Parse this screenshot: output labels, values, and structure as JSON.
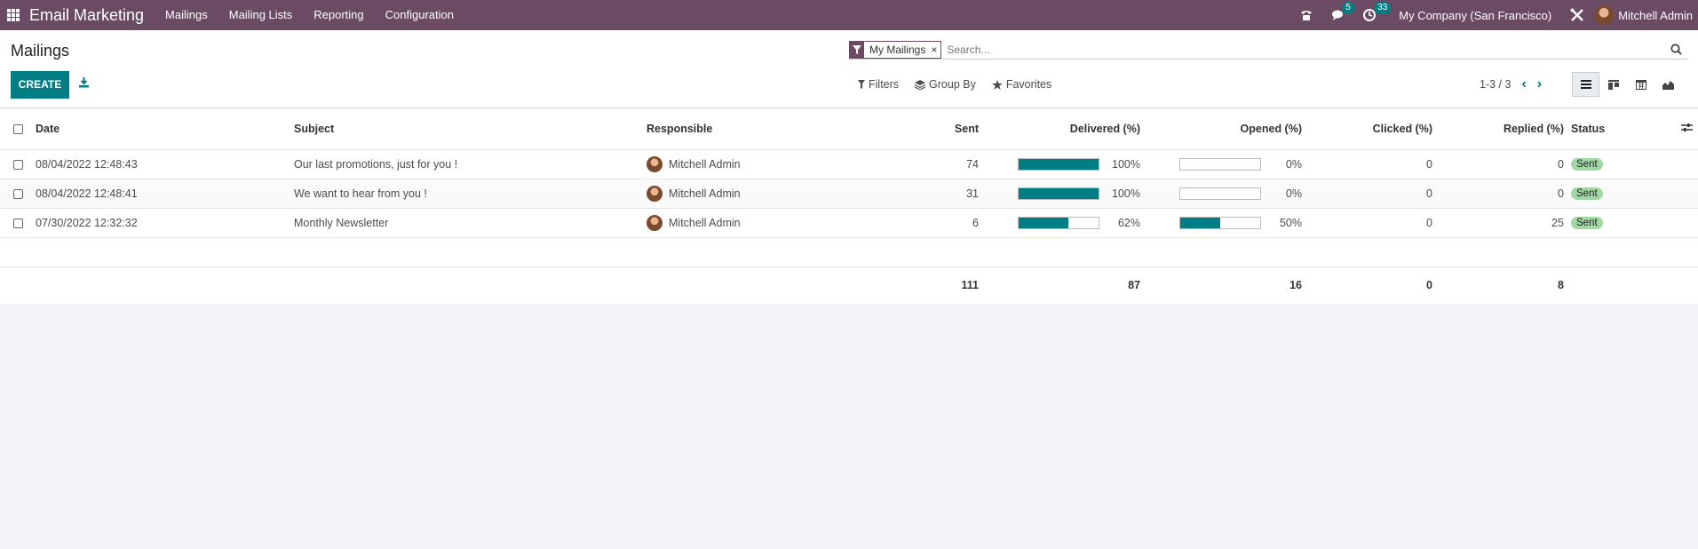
{
  "navbar": {
    "app_name": "Email Marketing",
    "menu": [
      "Mailings",
      "Mailing Lists",
      "Reporting",
      "Configuration"
    ],
    "messages_count": "5",
    "activities_count": "33",
    "company": "My Company (San Francisco)",
    "user": "Mitchell Admin",
    "bg_color": "#6b4a63"
  },
  "control": {
    "title": "Mailings",
    "create_label": "CREATE",
    "facet_label": "My Mailings",
    "facet_remove": "×",
    "search_placeholder": "Search...",
    "filters_label": "Filters",
    "groupby_label": "Group By",
    "favorites_label": "Favorites",
    "pager": "1-3 / 3"
  },
  "table": {
    "headers": {
      "date": "Date",
      "subject": "Subject",
      "responsible": "Responsible",
      "sent": "Sent",
      "delivered": "Delivered (%)",
      "opened": "Opened (%)",
      "clicked": "Clicked (%)",
      "replied": "Replied (%)",
      "status": "Status"
    },
    "rows": [
      {
        "date": "08/04/2022 12:48:43",
        "subject": "Our last promotions, just for you !",
        "responsible": "Mitchell Admin",
        "sent": "74",
        "delivered": "100%",
        "delivered_val": 100,
        "opened": "0%",
        "opened_val": 0,
        "clicked": "0",
        "replied": "0",
        "status": "Sent"
      },
      {
        "date": "08/04/2022 12:48:41",
        "subject": "We want to hear from you !",
        "responsible": "Mitchell Admin",
        "sent": "31",
        "delivered": "100%",
        "delivered_val": 100,
        "opened": "0%",
        "opened_val": 0,
        "clicked": "0",
        "replied": "0",
        "status": "Sent"
      },
      {
        "date": "07/30/2022 12:32:32",
        "subject": "Monthly Newsletter",
        "responsible": "Mitchell Admin",
        "sent": "6",
        "delivered": "62%",
        "delivered_val": 62,
        "opened": "50%",
        "opened_val": 50,
        "clicked": "0",
        "replied": "25",
        "status": "Sent"
      }
    ],
    "totals": {
      "sent": "111",
      "delivered": "87",
      "opened": "16",
      "clicked": "0",
      "replied": "8"
    },
    "accent_color": "#017e84",
    "status_color": "#9fd8a3"
  }
}
